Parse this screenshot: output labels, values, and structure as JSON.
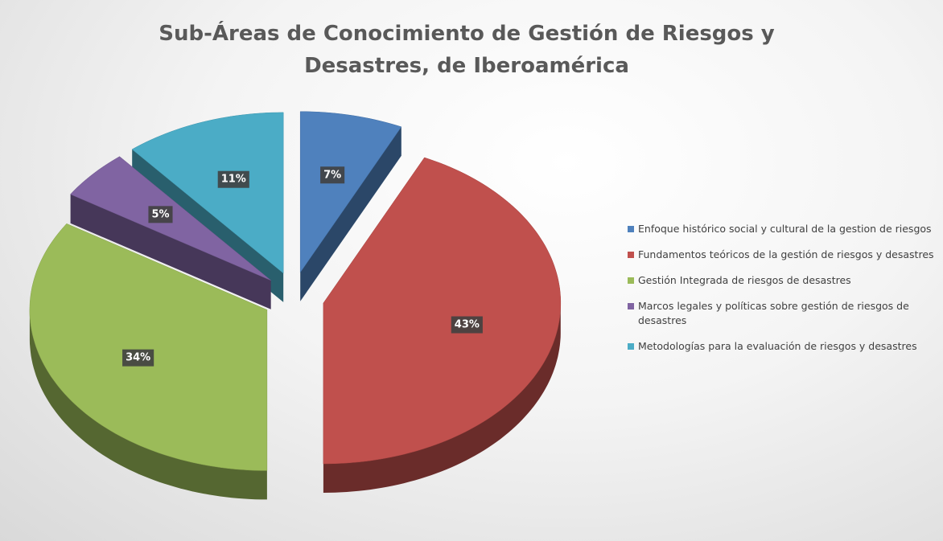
{
  "chart_data": {
    "type": "pie",
    "title": "Sub-Áreas de Conocimiento de Gestión de Riesgos y Desastres, de Iberoamérica",
    "categories": [
      "Enfoque histórico social y cultural de la gestion de riesgos",
      "Fundamentos teóricos de la gestión de riesgos y desastres",
      "Gestión Integrada de riesgos de desastres",
      "Marcos legales y políticas sobre gestión de riesgos de desastres",
      "Metodologías para la evaluación de riesgos y desastres"
    ],
    "values": [
      7,
      43,
      34,
      5,
      11
    ],
    "value_labels": [
      "7%",
      "43%",
      "34%",
      "5%",
      "11%"
    ],
    "colors": [
      "#4f81bd",
      "#c0504d",
      "#9bbb59",
      "#8064a2",
      "#4bacc6"
    ],
    "legend": "right"
  }
}
